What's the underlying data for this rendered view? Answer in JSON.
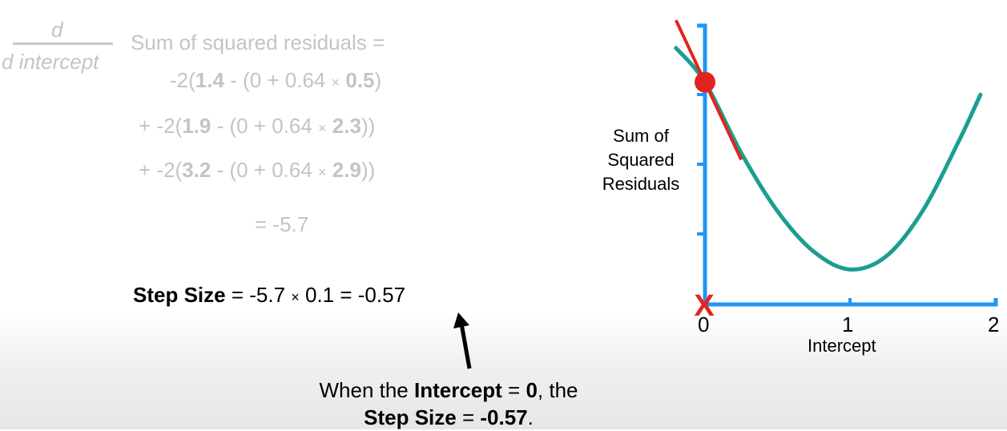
{
  "derivative": {
    "numerator": "d",
    "denominator": "d intercept",
    "title": "Sum of squared residuals ="
  },
  "equation": {
    "line1": {
      "prefix": "-2(",
      "obs": "1.4",
      "mid": " - (0 + 0.64 ",
      "times": "×",
      "x": "0.5",
      "suffix": ")"
    },
    "line2": {
      "prefix": "+ -2(",
      "obs": "1.9",
      "mid": " - (0 + 0.64 ",
      "times": "×",
      "x": "2.3",
      "suffix": "))"
    },
    "line3": {
      "prefix": "+ -2(",
      "obs": "3.2",
      "mid": " - (0 + 0.64 ",
      "times": "×",
      "x": "2.9",
      "suffix": "))"
    },
    "result": "= -5.7"
  },
  "step": {
    "label": "Step Size",
    "expr_a": " = -5.7 ",
    "times": "×",
    "expr_b": " 0.1 = -0.57"
  },
  "note": {
    "t1": "When the ",
    "b1": "Intercept",
    "t2": " = ",
    "b2": "0",
    "t3": ", the",
    "b3": "Step Size",
    "t4": " = ",
    "b4": "-0.57",
    "t5": "."
  },
  "chart_data": {
    "type": "line",
    "xlabel": "Intercept",
    "ylabel": "Sum of Squared Residuals",
    "x_ticks": [
      "0",
      "1",
      "2"
    ],
    "xlim": [
      0,
      2
    ],
    "series": [
      {
        "x": [
          -0.2,
          0,
          0.25,
          0.5,
          0.75,
          1.0,
          1.25,
          1.5,
          1.75,
          1.9
        ],
        "y": [
          3.3,
          2.86,
          1.95,
          1.2,
          0.68,
          0.45,
          0.62,
          1.2,
          2.1,
          2.7
        ]
      }
    ],
    "tangent_point": {
      "x": 0,
      "y": 2.86
    },
    "tangent_slope": -5.7,
    "marker": "X",
    "colors": {
      "curve": "#1a9e8f",
      "tangent": "#e0251f",
      "axis": "#2196f3",
      "point": "#e0251f"
    }
  }
}
